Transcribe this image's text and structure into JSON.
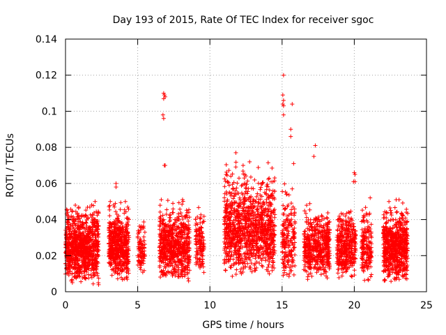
{
  "chart_data": {
    "type": "scatter",
    "title": "Day 193 of 2015, Rate Of TEC Index for receiver sgoc",
    "xlabel": "GPS time / hours",
    "ylabel": "ROTI / TECUs",
    "xlim": [
      0,
      25
    ],
    "ylim": [
      0,
      0.14
    ],
    "xticks": [
      "0",
      "5",
      "10",
      "15",
      "20",
      "25"
    ],
    "yticks": [
      "0",
      "0.02",
      "0.04",
      "0.06",
      "0.08",
      "0.1",
      "0.12",
      "0.14"
    ],
    "grid": true,
    "marker": "plus",
    "color": "#ff0000",
    "clusters": [
      {
        "x": [
          0.0,
          2.3
        ],
        "y": [
          0.003,
          0.051
        ],
        "density": 2000
      },
      {
        "x": [
          3.0,
          4.4
        ],
        "y": [
          0.005,
          0.05
        ],
        "density": 1200
      },
      {
        "x": [
          5.0,
          5.5
        ],
        "y": [
          0.007,
          0.043
        ],
        "density": 200
      },
      {
        "x": [
          6.5,
          8.6
        ],
        "y": [
          0.004,
          0.053
        ],
        "density": 1500
      },
      {
        "x": [
          9.0,
          9.6
        ],
        "y": [
          0.006,
          0.053
        ],
        "density": 280
      },
      {
        "x": [
          11.0,
          12.4
        ],
        "y": [
          0.005,
          0.075
        ],
        "density": 1000
      },
      {
        "x": [
          12.4,
          14.5
        ],
        "y": [
          0.006,
          0.072
        ],
        "density": 1400
      },
      {
        "x": [
          15.0,
          15.9
        ],
        "y": [
          0.005,
          0.06
        ],
        "density": 400
      },
      {
        "x": [
          16.5,
          18.3
        ],
        "y": [
          0.006,
          0.05
        ],
        "density": 1100
      },
      {
        "x": [
          18.8,
          20.1
        ],
        "y": [
          0.005,
          0.05
        ],
        "density": 800
      },
      {
        "x": [
          20.5,
          21.2
        ],
        "y": [
          0.004,
          0.05
        ],
        "density": 360
      },
      {
        "x": [
          22.0,
          23.7
        ],
        "y": [
          0.004,
          0.051
        ],
        "density": 1500
      }
    ],
    "outliers": [
      {
        "x": 3.5,
        "y": 0.06
      },
      {
        "x": 3.5,
        "y": 0.058
      },
      {
        "x": 3.1,
        "y": 0.05
      },
      {
        "x": 2.05,
        "y": 0.05
      },
      {
        "x": 6.8,
        "y": 0.11
      },
      {
        "x": 6.85,
        "y": 0.109
      },
      {
        "x": 6.8,
        "y": 0.107
      },
      {
        "x": 6.9,
        "y": 0.108
      },
      {
        "x": 6.75,
        "y": 0.098
      },
      {
        "x": 6.8,
        "y": 0.096
      },
      {
        "x": 6.85,
        "y": 0.07
      },
      {
        "x": 6.9,
        "y": 0.07
      },
      {
        "x": 11.2,
        "y": 0.061
      },
      {
        "x": 11.45,
        "y": 0.064
      },
      {
        "x": 11.8,
        "y": 0.077
      },
      {
        "x": 12.3,
        "y": 0.07
      },
      {
        "x": 12.75,
        "y": 0.072
      },
      {
        "x": 13.8,
        "y": 0.055
      },
      {
        "x": 13.9,
        "y": 0.054
      },
      {
        "x": 15.1,
        "y": 0.12
      },
      {
        "x": 15.05,
        "y": 0.109
      },
      {
        "x": 15.1,
        "y": 0.106
      },
      {
        "x": 15.05,
        "y": 0.104
      },
      {
        "x": 15.1,
        "y": 0.103
      },
      {
        "x": 15.1,
        "y": 0.098
      },
      {
        "x": 15.7,
        "y": 0.104
      },
      {
        "x": 15.6,
        "y": 0.09
      },
      {
        "x": 15.6,
        "y": 0.086
      },
      {
        "x": 15.8,
        "y": 0.071
      },
      {
        "x": 15.3,
        "y": 0.054
      },
      {
        "x": 15.7,
        "y": 0.057
      },
      {
        "x": 17.3,
        "y": 0.081
      },
      {
        "x": 17.2,
        "y": 0.075
      },
      {
        "x": 20.0,
        "y": 0.066
      },
      {
        "x": 20.05,
        "y": 0.065
      },
      {
        "x": 19.95,
        "y": 0.061
      },
      {
        "x": 20.05,
        "y": 0.061
      },
      {
        "x": 21.1,
        "y": 0.052
      },
      {
        "x": 22.4,
        "y": 0.05
      },
      {
        "x": 22.9,
        "y": 0.051
      },
      {
        "x": 23.1,
        "y": 0.051
      }
    ]
  }
}
